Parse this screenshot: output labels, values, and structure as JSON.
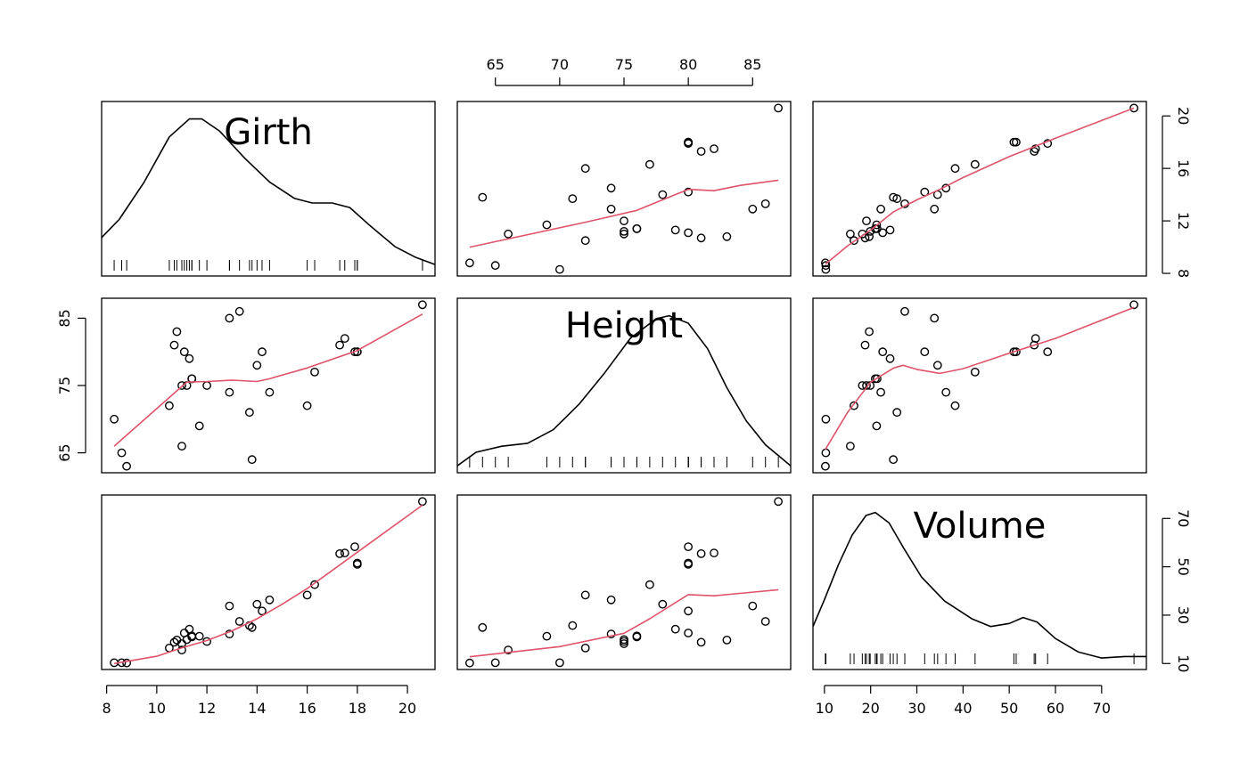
{
  "chart_data": {
    "type": "scatter",
    "subtype": "scatterplot-matrix",
    "variables": [
      "Girth",
      "Height",
      "Volume"
    ],
    "colors": {
      "points": "#000000",
      "smooth": "#DF536B",
      "density": "#000000",
      "frame": "#000000"
    },
    "data": {
      "Girth": [
        8.3,
        8.6,
        8.8,
        10.5,
        10.7,
        10.8,
        11.0,
        11.0,
        11.1,
        11.2,
        11.3,
        11.4,
        11.4,
        11.7,
        12.0,
        12.9,
        12.9,
        13.3,
        13.7,
        13.8,
        14.0,
        14.2,
        14.5,
        16.0,
        16.3,
        17.3,
        17.5,
        17.9,
        18.0,
        18.0,
        20.6
      ],
      "Height": [
        70,
        65,
        63,
        72,
        81,
        83,
        66,
        75,
        80,
        75,
        79,
        76,
        76,
        69,
        75,
        74,
        85,
        86,
        71,
        64,
        78,
        80,
        74,
        72,
        77,
        81,
        82,
        80,
        80,
        80,
        87
      ],
      "Volume": [
        10.3,
        10.3,
        10.2,
        16.4,
        18.8,
        19.7,
        15.6,
        18.2,
        22.6,
        19.9,
        24.2,
        21.0,
        21.4,
        21.3,
        19.1,
        22.2,
        33.8,
        27.4,
        25.7,
        24.9,
        34.5,
        31.7,
        36.3,
        38.3,
        42.6,
        55.4,
        55.7,
        58.3,
        51.5,
        51.0,
        77.0
      ]
    },
    "ranges": {
      "Girth": [
        7.8,
        21.1
      ],
      "Height": [
        62.04,
        87.96
      ],
      "Volume": [
        7.52,
        79.68
      ]
    },
    "ticks": {
      "Girth": [
        "8",
        "10",
        "12",
        "14",
        "16",
        "18",
        "20"
      ],
      "Height": [
        "65",
        "70",
        "75",
        "80",
        "85"
      ],
      "Volume": [
        "10",
        "20",
        "30",
        "40",
        "50",
        "60",
        "70"
      ],
      "Height_left": [
        "65",
        "75",
        "85"
      ],
      "Girth_right": [
        "8",
        "12",
        "16",
        "20"
      ],
      "Volume_right": [
        "10",
        "30",
        "50",
        "70"
      ]
    },
    "smooths": {
      "Girth_vs_Height": [
        [
          63,
          10.0
        ],
        [
          72,
          11.9
        ],
        [
          76,
          12.8
        ],
        [
          80,
          14.4
        ],
        [
          82,
          14.3
        ],
        [
          84,
          14.7
        ],
        [
          87,
          15.1
        ]
      ],
      "Girth_vs_Volume": [
        [
          10.2,
          8.7
        ],
        [
          15,
          10.1
        ],
        [
          20,
          11.3
        ],
        [
          25,
          12.7
        ],
        [
          30,
          13.6
        ],
        [
          35,
          14.4
        ],
        [
          40,
          15.3
        ],
        [
          50,
          16.9
        ],
        [
          60,
          18.3
        ],
        [
          77,
          20.6
        ]
      ],
      "Height_vs_Girth": [
        [
          8.3,
          66
        ],
        [
          10.8,
          74.2
        ],
        [
          11.2,
          75.5
        ],
        [
          12,
          75.6
        ],
        [
          13,
          75.8
        ],
        [
          14,
          75.6
        ],
        [
          14.5,
          76.0
        ],
        [
          16,
          77.6
        ],
        [
          18,
          80.2
        ],
        [
          20.6,
          85.6
        ]
      ],
      "Height_vs_Volume": [
        [
          10.2,
          65.5
        ],
        [
          15,
          71.0
        ],
        [
          20,
          75.5
        ],
        [
          25,
          77.6
        ],
        [
          27,
          78.0
        ],
        [
          30,
          77.4
        ],
        [
          35,
          76.8
        ],
        [
          40,
          77.5
        ],
        [
          50,
          79.8
        ],
        [
          60,
          82.0
        ],
        [
          77,
          86.6
        ]
      ],
      "Volume_vs_Girth": [
        [
          8.3,
          10.0
        ],
        [
          10,
          13.0
        ],
        [
          11,
          16.5
        ],
        [
          12,
          19.5
        ],
        [
          13,
          23.5
        ],
        [
          14,
          28.5
        ],
        [
          15,
          34.5
        ],
        [
          16,
          41.0
        ],
        [
          17,
          48.5
        ],
        [
          18,
          56.0
        ],
        [
          20.6,
          75.5
        ]
      ],
      "Volume_vs_Height": [
        [
          63,
          12.8
        ],
        [
          70,
          17.0
        ],
        [
          75,
          22.5
        ],
        [
          77,
          28.5
        ],
        [
          80,
          38.5
        ],
        [
          82,
          38.0
        ],
        [
          84,
          39.0
        ],
        [
          87,
          40.5
        ]
      ]
    },
    "densities": {
      "Girth": [
        [
          7.8,
          0.21
        ],
        [
          8.5,
          0.33
        ],
        [
          9.5,
          0.58
        ],
        [
          10.5,
          0.88
        ],
        [
          11.3,
          1.0
        ],
        [
          11.8,
          1.0
        ],
        [
          12.5,
          0.92
        ],
        [
          13.5,
          0.74
        ],
        [
          14.5,
          0.58
        ],
        [
          15.5,
          0.47
        ],
        [
          16.2,
          0.44
        ],
        [
          17.0,
          0.44
        ],
        [
          17.7,
          0.41
        ],
        [
          18.5,
          0.29
        ],
        [
          19.5,
          0.15
        ],
        [
          20.3,
          0.08
        ],
        [
          21.1,
          0.03
        ]
      ],
      "Height": [
        [
          62.04,
          0.0
        ],
        [
          63.5,
          0.09
        ],
        [
          65.5,
          0.13
        ],
        [
          67.5,
          0.15
        ],
        [
          69.5,
          0.24
        ],
        [
          71.5,
          0.41
        ],
        [
          73.5,
          0.62
        ],
        [
          75.5,
          0.85
        ],
        [
          77.5,
          0.98
        ],
        [
          78.5,
          1.0
        ],
        [
          80.0,
          0.95
        ],
        [
          81.5,
          0.78
        ],
        [
          83.0,
          0.52
        ],
        [
          84.5,
          0.3
        ],
        [
          86.0,
          0.14
        ],
        [
          87.96,
          0.0
        ]
      ],
      "Volume": [
        [
          7.52,
          0.24
        ],
        [
          10,
          0.42
        ],
        [
          13,
          0.65
        ],
        [
          16,
          0.85
        ],
        [
          19,
          0.98
        ],
        [
          21,
          1.0
        ],
        [
          24,
          0.93
        ],
        [
          27,
          0.77
        ],
        [
          31,
          0.57
        ],
        [
          36,
          0.41
        ],
        [
          42,
          0.29
        ],
        [
          46,
          0.24
        ],
        [
          50,
          0.26
        ],
        [
          53,
          0.3
        ],
        [
          56,
          0.27
        ],
        [
          60,
          0.16
        ],
        [
          65,
          0.07
        ],
        [
          70,
          0.03
        ],
        [
          75,
          0.04
        ],
        [
          79.68,
          0.04
        ]
      ]
    },
    "density_scale": {
      "Girth": {
        "min": 0.03,
        "max": 1.0
      },
      "Height": {
        "min": 0.0,
        "max": 1.0
      },
      "Volume": {
        "min": 0.03,
        "max": 1.0
      }
    },
    "axis_placement": {
      "top": "Height",
      "bottom": [
        "Girth",
        "Volume"
      ],
      "left": "Height",
      "right": [
        "Girth",
        "Volume"
      ]
    }
  }
}
